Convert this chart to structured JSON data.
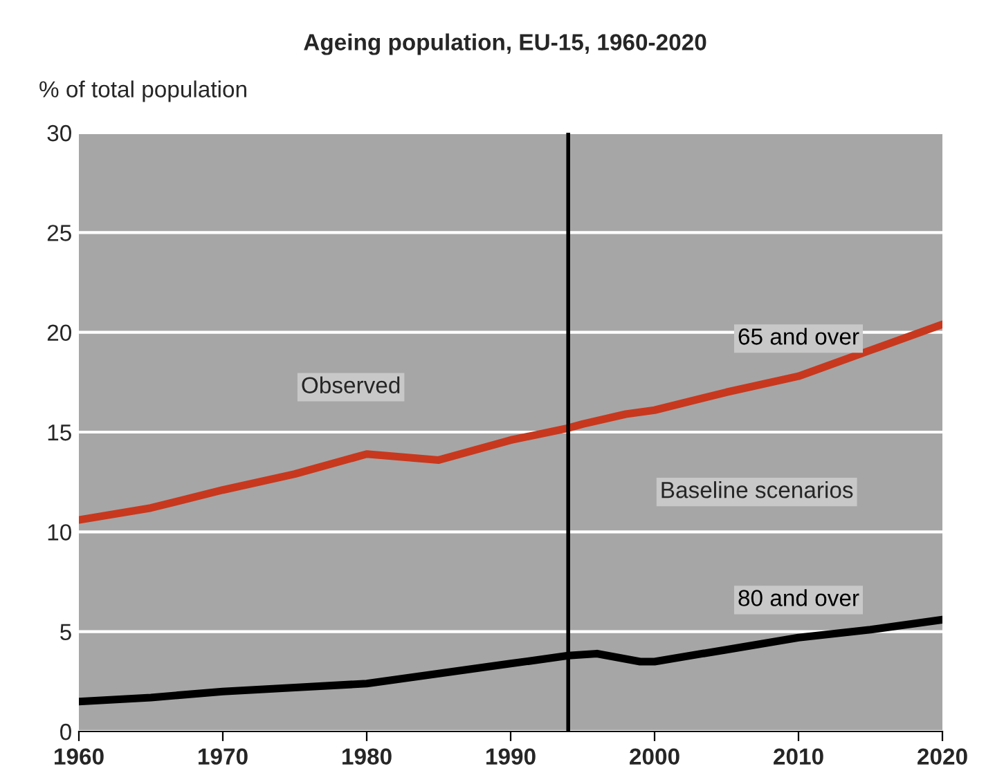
{
  "chart_data": {
    "type": "line",
    "title": "Ageing population, EU-15, 1960-2020",
    "ylabel": "% of total population",
    "xlim": [
      1960,
      2020
    ],
    "xticks": [
      1960,
      1970,
      1980,
      1990,
      2000,
      2010,
      2020
    ],
    "ylim": [
      0,
      30
    ],
    "yticks": [
      0,
      5,
      10,
      15,
      20,
      25,
      30
    ],
    "grid": "y",
    "legend": false,
    "marker": "none",
    "line_style": "solid",
    "series": [
      {
        "name": "65 and over",
        "color": "#c8381e",
        "x": [
          1960,
          1965,
          1970,
          1975,
          1980,
          1985,
          1990,
          1994,
          1995,
          1998,
          2000,
          2005,
          2010,
          2015,
          2020
        ],
        "values": [
          10.6,
          11.2,
          12.1,
          12.9,
          13.9,
          13.6,
          14.6,
          15.2,
          15.4,
          15.9,
          16.1,
          17.0,
          17.8,
          19.1,
          20.4
        ]
      },
      {
        "name": "80 and over",
        "color": "#000000",
        "x": [
          1960,
          1965,
          1970,
          1975,
          1980,
          1985,
          1990,
          1994,
          1996,
          1999,
          2000,
          2005,
          2010,
          2015,
          2020
        ],
        "values": [
          1.5,
          1.7,
          2.0,
          2.2,
          2.4,
          2.9,
          3.4,
          3.8,
          3.9,
          3.5,
          3.5,
          4.1,
          4.7,
          5.1,
          5.6
        ]
      }
    ],
    "ref_lines": [
      {
        "axis": "x",
        "value": 1994,
        "color": "#000000",
        "line_style": "solid"
      }
    ],
    "annotations": [
      "Observed",
      "Baseline scenarios"
    ]
  }
}
